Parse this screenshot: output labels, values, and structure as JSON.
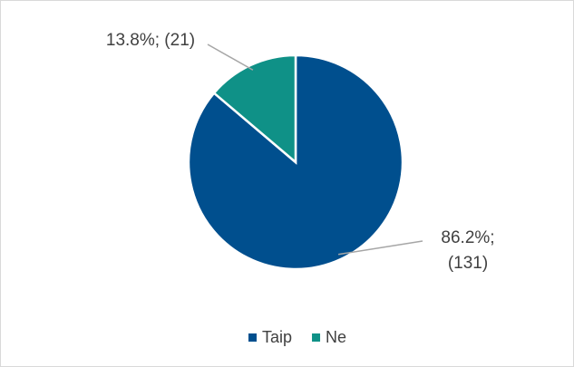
{
  "chart_data": {
    "type": "pie",
    "categories": [
      "Taip",
      "Ne"
    ],
    "values": [
      86.2,
      13.8
    ],
    "counts": [
      131,
      21
    ],
    "value_labels": [
      "86.2%; (131)",
      "13.8%; (21)"
    ],
    "colors": [
      "#004f8e",
      "#0f9187"
    ],
    "legend": "bottom"
  }
}
